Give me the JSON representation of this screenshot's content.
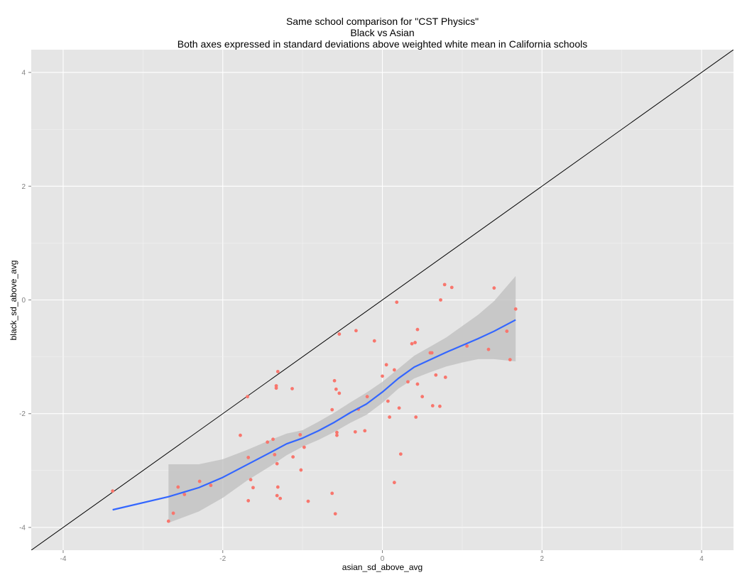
{
  "chart_data": {
    "type": "scatter",
    "title_lines": [
      "Same school comparison for \"CST Physics\"",
      "Black vs Asian",
      "Both axes expressed in standard deviations above weighted white mean in California schools"
    ],
    "xlabel": "asian_sd_above_avg",
    "ylabel": "black_sd_above_avg",
    "xlim": [
      -4.4,
      4.4
    ],
    "ylim": [
      -4.4,
      4.4
    ],
    "x_ticks": [
      -4,
      -2,
      0,
      2,
      4
    ],
    "y_ticks": [
      -4,
      -2,
      0,
      2,
      4
    ],
    "x_tick_labels": [
      "-4",
      "-2",
      "0",
      "2",
      "4"
    ],
    "y_tick_labels": [
      "-4",
      "-2",
      "0",
      "2",
      "4"
    ],
    "grid": true,
    "background": "#e5e5e5",
    "point_color": "#f8766d",
    "smooth_color": "#3366ff",
    "ribbon_color": "#bdbdbd",
    "reference_line": {
      "slope": 1,
      "intercept": 0,
      "color": "#000000"
    },
    "points": [
      [
        -3.38,
        -3.36
      ],
      [
        -2.68,
        -3.89
      ],
      [
        -2.62,
        -3.75
      ],
      [
        -2.56,
        -3.29
      ],
      [
        -2.48,
        -3.42
      ],
      [
        -2.29,
        -3.19
      ],
      [
        -2.15,
        -3.26
      ],
      [
        -1.78,
        -2.38
      ],
      [
        -1.69,
        -1.7
      ],
      [
        -1.68,
        -2.77
      ],
      [
        -1.68,
        -3.53
      ],
      [
        -1.65,
        -3.16
      ],
      [
        -1.62,
        -3.3
      ],
      [
        -1.44,
        -2.5
      ],
      [
        -1.37,
        -2.45
      ],
      [
        -1.35,
        -2.72
      ],
      [
        -1.33,
        -1.51
      ],
      [
        -1.33,
        -1.55
      ],
      [
        -1.32,
        -2.88
      ],
      [
        -1.32,
        -3.44
      ],
      [
        -1.31,
        -1.26
      ],
      [
        -1.31,
        -3.29
      ],
      [
        -1.28,
        -3.49
      ],
      [
        -1.13,
        -1.56
      ],
      [
        -1.12,
        -2.76
      ],
      [
        -1.03,
        -2.37
      ],
      [
        -1.02,
        -2.99
      ],
      [
        -0.98,
        -2.59
      ],
      [
        -0.93,
        -3.54
      ],
      [
        -0.63,
        -1.93
      ],
      [
        -0.63,
        -3.4
      ],
      [
        -0.6,
        -1.42
      ],
      [
        -0.59,
        -3.76
      ],
      [
        -0.58,
        -1.57
      ],
      [
        -0.57,
        -2.33
      ],
      [
        -0.57,
        -2.38
      ],
      [
        -0.54,
        -1.64
      ],
      [
        -0.54,
        -0.6
      ],
      [
        -0.34,
        -2.32
      ],
      [
        -0.33,
        -0.54
      ],
      [
        -0.3,
        -1.92
      ],
      [
        -0.22,
        -2.3
      ],
      [
        -0.19,
        -1.7
      ],
      [
        -0.1,
        -0.72
      ],
      [
        0.0,
        -1.34
      ],
      [
        0.05,
        -1.14
      ],
      [
        0.07,
        -1.78
      ],
      [
        0.09,
        -2.06
      ],
      [
        0.15,
        -1.23
      ],
      [
        0.15,
        -3.21
      ],
      [
        0.18,
        -0.04
      ],
      [
        0.21,
        -1.9
      ],
      [
        0.23,
        -2.71
      ],
      [
        0.32,
        -1.44
      ],
      [
        0.37,
        -0.77
      ],
      [
        0.41,
        -0.75
      ],
      [
        0.42,
        -2.06
      ],
      [
        0.44,
        -1.48
      ],
      [
        0.44,
        -0.52
      ],
      [
        0.5,
        -1.7
      ],
      [
        0.6,
        -0.93
      ],
      [
        0.62,
        -0.93
      ],
      [
        0.63,
        -1.86
      ],
      [
        0.67,
        -1.32
      ],
      [
        0.72,
        -1.87
      ],
      [
        0.73,
        0.0
      ],
      [
        0.78,
        0.27
      ],
      [
        0.79,
        -1.36
      ],
      [
        0.87,
        0.22
      ],
      [
        1.06,
        -0.81
      ],
      [
        1.33,
        -0.87
      ],
      [
        1.4,
        0.21
      ],
      [
        1.56,
        -0.55
      ],
      [
        1.6,
        -1.05
      ],
      [
        1.67,
        -0.16
      ]
    ],
    "smooth": [
      [
        -3.38,
        -3.69
      ],
      [
        -2.68,
        -3.46
      ],
      [
        -2.3,
        -3.3
      ],
      [
        -2.0,
        -3.12
      ],
      [
        -1.7,
        -2.9
      ],
      [
        -1.4,
        -2.68
      ],
      [
        -1.2,
        -2.53
      ],
      [
        -1.0,
        -2.43
      ],
      [
        -0.8,
        -2.3
      ],
      [
        -0.6,
        -2.15
      ],
      [
        -0.4,
        -1.98
      ],
      [
        -0.2,
        -1.83
      ],
      [
        0.0,
        -1.62
      ],
      [
        0.2,
        -1.38
      ],
      [
        0.4,
        -1.18
      ],
      [
        0.6,
        -1.05
      ],
      [
        0.8,
        -0.92
      ],
      [
        1.0,
        -0.8
      ],
      [
        1.2,
        -0.68
      ],
      [
        1.4,
        -0.55
      ],
      [
        1.67,
        -0.35
      ]
    ],
    "ribbon_upper": [
      [
        -2.68,
        -2.89
      ],
      [
        -2.3,
        -2.89
      ],
      [
        -2.0,
        -2.8
      ],
      [
        -1.7,
        -2.64
      ],
      [
        -1.4,
        -2.46
      ],
      [
        -1.2,
        -2.35
      ],
      [
        -1.0,
        -2.29
      ],
      [
        -0.8,
        -2.14
      ],
      [
        -0.6,
        -1.98
      ],
      [
        -0.4,
        -1.8
      ],
      [
        -0.2,
        -1.63
      ],
      [
        0.0,
        -1.44
      ],
      [
        0.2,
        -1.21
      ],
      [
        0.4,
        -0.98
      ],
      [
        0.6,
        -0.82
      ],
      [
        0.8,
        -0.66
      ],
      [
        1.0,
        -0.46
      ],
      [
        1.2,
        -0.26
      ],
      [
        1.4,
        -0.02
      ],
      [
        1.67,
        0.42
      ]
    ],
    "ribbon_lower": [
      [
        -2.68,
        -3.92
      ],
      [
        -2.3,
        -3.72
      ],
      [
        -2.0,
        -3.48
      ],
      [
        -1.7,
        -3.18
      ],
      [
        -1.4,
        -2.92
      ],
      [
        -1.2,
        -2.73
      ],
      [
        -1.0,
        -2.58
      ],
      [
        -0.8,
        -2.46
      ],
      [
        -0.6,
        -2.32
      ],
      [
        -0.4,
        -2.16
      ],
      [
        -0.2,
        -2.02
      ],
      [
        0.0,
        -1.81
      ],
      [
        0.2,
        -1.56
      ],
      [
        0.4,
        -1.38
      ],
      [
        0.6,
        -1.27
      ],
      [
        0.8,
        -1.17
      ],
      [
        1.0,
        -1.1
      ],
      [
        1.2,
        -1.04
      ],
      [
        1.4,
        -1.04
      ],
      [
        1.67,
        -1.08
      ]
    ]
  }
}
